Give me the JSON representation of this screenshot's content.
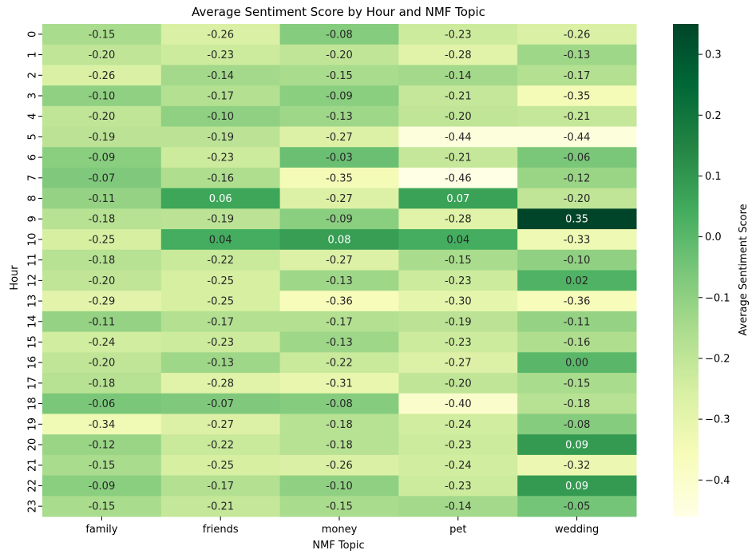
{
  "chart_data": {
    "type": "heatmap",
    "title": "Average Sentiment Score by Hour and NMF Topic",
    "xlabel": "NMF Topic",
    "ylabel": "Hour",
    "colorbar_label": "Average Sentiment Score",
    "colormap": [
      "#ffffe5",
      "#f7fcb9",
      "#d9f0a3",
      "#addd8e",
      "#78c679",
      "#41ab5d",
      "#238443",
      "#006837",
      "#004529"
    ],
    "vmin": -0.46,
    "vmax": 0.35,
    "colorbar_ticks": [
      "−0.4",
      "−0.3",
      "−0.2",
      "−0.1",
      "0.0",
      "0.1",
      "0.2",
      "0.3"
    ],
    "colorbar_tick_values": [
      -0.4,
      -0.3,
      -0.2,
      -0.1,
      0.0,
      0.1,
      0.2,
      0.3
    ],
    "categories": [
      "family",
      "friends",
      "money",
      "pet",
      "wedding"
    ],
    "rows": [
      "0",
      "1",
      "2",
      "3",
      "4",
      "5",
      "6",
      "7",
      "8",
      "9",
      "10",
      "11",
      "12",
      "13",
      "14",
      "15",
      "16",
      "17",
      "18",
      "19",
      "20",
      "21",
      "22",
      "23"
    ],
    "values": [
      [
        -0.15,
        -0.26,
        -0.08,
        -0.23,
        -0.26
      ],
      [
        -0.2,
        -0.23,
        -0.2,
        -0.28,
        -0.13
      ],
      [
        -0.26,
        -0.14,
        -0.15,
        -0.14,
        -0.17
      ],
      [
        -0.1,
        -0.17,
        -0.09,
        -0.21,
        -0.35
      ],
      [
        -0.2,
        -0.1,
        -0.13,
        -0.2,
        -0.21
      ],
      [
        -0.19,
        -0.19,
        -0.27,
        -0.44,
        -0.44
      ],
      [
        -0.09,
        -0.23,
        -0.03,
        -0.21,
        -0.06
      ],
      [
        -0.07,
        -0.16,
        -0.35,
        -0.46,
        -0.12
      ],
      [
        -0.11,
        0.06,
        -0.27,
        0.07,
        -0.2
      ],
      [
        -0.18,
        -0.19,
        -0.09,
        -0.28,
        0.35
      ],
      [
        -0.25,
        0.04,
        0.08,
        0.04,
        -0.33
      ],
      [
        -0.18,
        -0.22,
        -0.27,
        -0.15,
        -0.1
      ],
      [
        -0.2,
        -0.25,
        -0.13,
        -0.23,
        0.02
      ],
      [
        -0.29,
        -0.25,
        -0.36,
        -0.3,
        -0.36
      ],
      [
        -0.11,
        -0.17,
        -0.17,
        -0.19,
        -0.11
      ],
      [
        -0.24,
        -0.23,
        -0.13,
        -0.23,
        -0.16
      ],
      [
        -0.2,
        -0.13,
        -0.22,
        -0.27,
        0.0
      ],
      [
        -0.18,
        -0.28,
        -0.31,
        -0.2,
        -0.15
      ],
      [
        -0.06,
        -0.07,
        -0.08,
        -0.4,
        -0.18
      ],
      [
        -0.34,
        -0.27,
        -0.18,
        -0.24,
        -0.08
      ],
      [
        -0.12,
        -0.22,
        -0.18,
        -0.23,
        0.09
      ],
      [
        -0.15,
        -0.25,
        -0.26,
        -0.24,
        -0.32
      ],
      [
        -0.09,
        -0.17,
        -0.1,
        -0.23,
        0.09
      ],
      [
        -0.15,
        -0.21,
        -0.15,
        -0.14,
        -0.05
      ]
    ],
    "grid": false,
    "legend": "colorbar-right"
  }
}
